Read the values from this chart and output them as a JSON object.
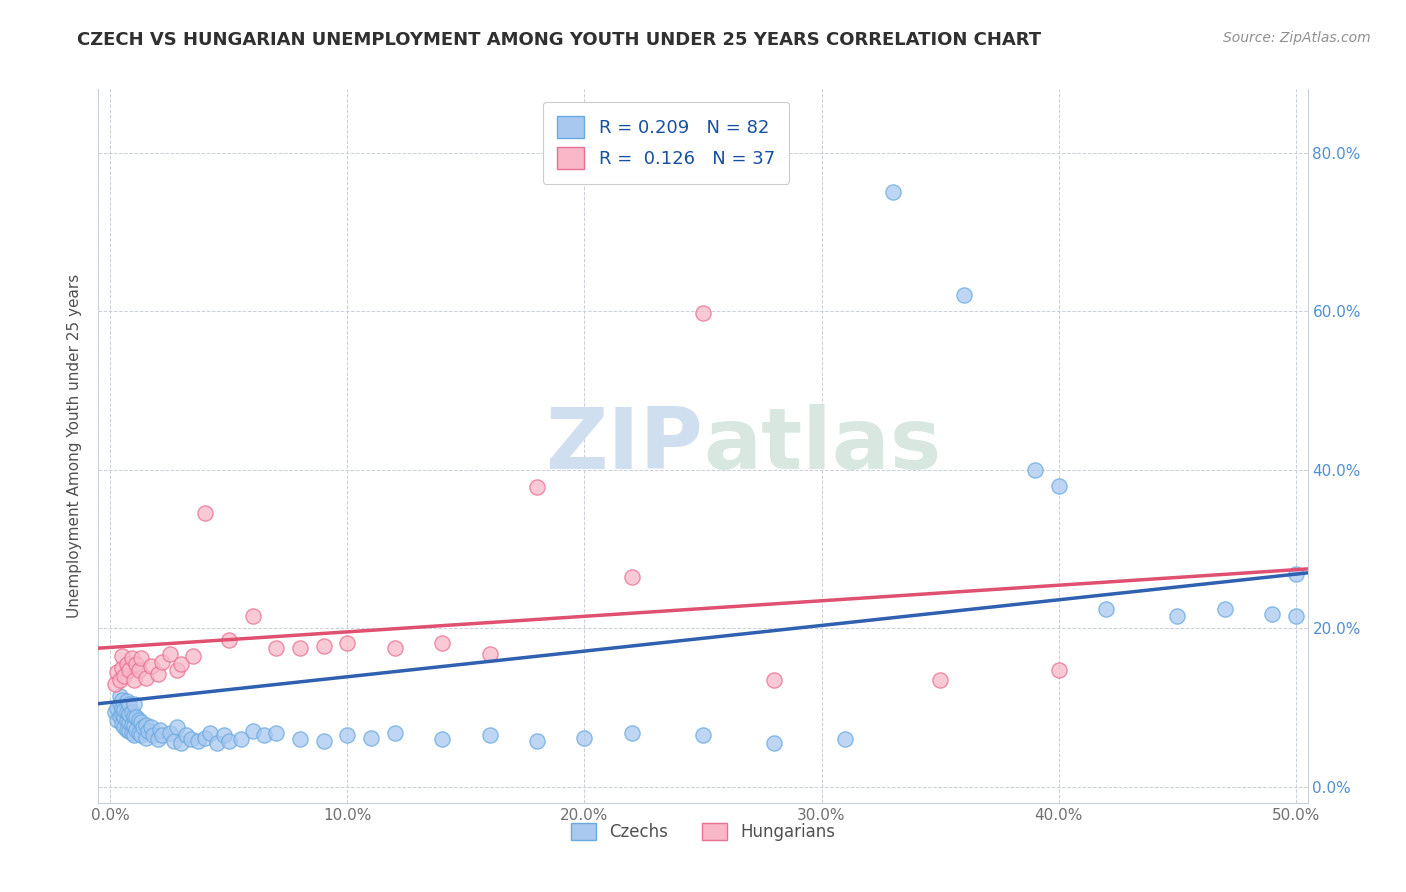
{
  "title": "CZECH VS HUNGARIAN UNEMPLOYMENT AMONG YOUTH UNDER 25 YEARS CORRELATION CHART",
  "source": "Source: ZipAtlas.com",
  "ylabel": "Unemployment Among Youth under 25 years",
  "xlim": [
    -0.005,
    0.505
  ],
  "ylim": [
    -0.02,
    0.88
  ],
  "xticks": [
    0.0,
    0.1,
    0.2,
    0.3,
    0.4,
    0.5
  ],
  "xticklabels": [
    "0.0%",
    "10.0%",
    "20.0%",
    "30.0%",
    "40.0%",
    "50.0%"
  ],
  "yticks_left": [
    0.0,
    0.2,
    0.4,
    0.6,
    0.8
  ],
  "yticklabels_left": [
    "",
    "",
    "",
    "",
    ""
  ],
  "yticks_right": [
    0.0,
    0.2,
    0.4,
    0.6,
    0.8
  ],
  "yticklabels_right": [
    "0.0%",
    "20.0%",
    "40.0%",
    "60.0%",
    "80.0%"
  ],
  "czech_color": "#a8c8f0",
  "czech_edge_color": "#6aaae0",
  "hungarian_color": "#f8b8c8",
  "hungarian_edge_color": "#e87090",
  "czech_line_color": "#3060b0",
  "hungarian_line_color": "#e05070",
  "R_czech": 0.209,
  "N_czech": 82,
  "R_hungarian": 0.126,
  "N_hungarian": 37,
  "legend_czechs": "Czechs",
  "legend_hungarians": "Hungarians",
  "watermark": "ZIPatlas",
  "watermark_color": "#d0dff0",
  "background_color": "#ffffff",
  "grid_color": "#c8d0dc",
  "title_color": "#303030",
  "label_color": "#505050",
  "tick_color": "#707070",
  "right_tick_color": "#5090d0",
  "czech_line_start_y": 0.105,
  "czech_line_end_y": 0.27,
  "hungarian_line_start_y": 0.175,
  "hungarian_line_end_y": 0.275,
  "czech_scatter_x": [
    0.002,
    0.003,
    0.003,
    0.004,
    0.004,
    0.004,
    0.005,
    0.005,
    0.005,
    0.005,
    0.006,
    0.006,
    0.006,
    0.007,
    0.007,
    0.007,
    0.007,
    0.008,
    0.008,
    0.008,
    0.008,
    0.009,
    0.009,
    0.009,
    0.01,
    0.01,
    0.01,
    0.01,
    0.011,
    0.011,
    0.012,
    0.012,
    0.013,
    0.013,
    0.014,
    0.015,
    0.015,
    0.016,
    0.017,
    0.018,
    0.02,
    0.021,
    0.022,
    0.025,
    0.027,
    0.028,
    0.03,
    0.032,
    0.034,
    0.037,
    0.04,
    0.042,
    0.045,
    0.048,
    0.05,
    0.055,
    0.06,
    0.065,
    0.07,
    0.08,
    0.09,
    0.1,
    0.11,
    0.12,
    0.14,
    0.16,
    0.18,
    0.2,
    0.22,
    0.25,
    0.28,
    0.31,
    0.33,
    0.36,
    0.39,
    0.4,
    0.42,
    0.45,
    0.47,
    0.49,
    0.5,
    0.5
  ],
  "czech_scatter_y": [
    0.095,
    0.085,
    0.1,
    0.09,
    0.105,
    0.115,
    0.08,
    0.092,
    0.1,
    0.11,
    0.075,
    0.088,
    0.097,
    0.072,
    0.085,
    0.095,
    0.108,
    0.07,
    0.082,
    0.092,
    0.105,
    0.068,
    0.08,
    0.095,
    0.065,
    0.078,
    0.09,
    0.105,
    0.072,
    0.088,
    0.068,
    0.085,
    0.065,
    0.082,
    0.075,
    0.062,
    0.078,
    0.07,
    0.075,
    0.065,
    0.06,
    0.072,
    0.065,
    0.068,
    0.058,
    0.075,
    0.055,
    0.065,
    0.06,
    0.058,
    0.062,
    0.068,
    0.055,
    0.065,
    0.058,
    0.06,
    0.07,
    0.065,
    0.068,
    0.06,
    0.058,
    0.065,
    0.062,
    0.068,
    0.06,
    0.065,
    0.058,
    0.062,
    0.068,
    0.065,
    0.055,
    0.06,
    0.75,
    0.62,
    0.4,
    0.38,
    0.225,
    0.215,
    0.225,
    0.218,
    0.268,
    0.215
  ],
  "hungarian_scatter_x": [
    0.002,
    0.003,
    0.004,
    0.005,
    0.005,
    0.006,
    0.007,
    0.008,
    0.009,
    0.01,
    0.011,
    0.012,
    0.013,
    0.015,
    0.017,
    0.02,
    0.022,
    0.025,
    0.028,
    0.03,
    0.035,
    0.04,
    0.05,
    0.06,
    0.07,
    0.08,
    0.09,
    0.1,
    0.12,
    0.14,
    0.16,
    0.18,
    0.22,
    0.25,
    0.28,
    0.35,
    0.4
  ],
  "hungarian_scatter_y": [
    0.13,
    0.145,
    0.135,
    0.15,
    0.165,
    0.14,
    0.155,
    0.148,
    0.162,
    0.135,
    0.155,
    0.148,
    0.162,
    0.138,
    0.152,
    0.142,
    0.158,
    0.168,
    0.148,
    0.155,
    0.165,
    0.345,
    0.185,
    0.215,
    0.175,
    0.175,
    0.178,
    0.182,
    0.175,
    0.182,
    0.168,
    0.378,
    0.265,
    0.598,
    0.135,
    0.135,
    0.148
  ]
}
